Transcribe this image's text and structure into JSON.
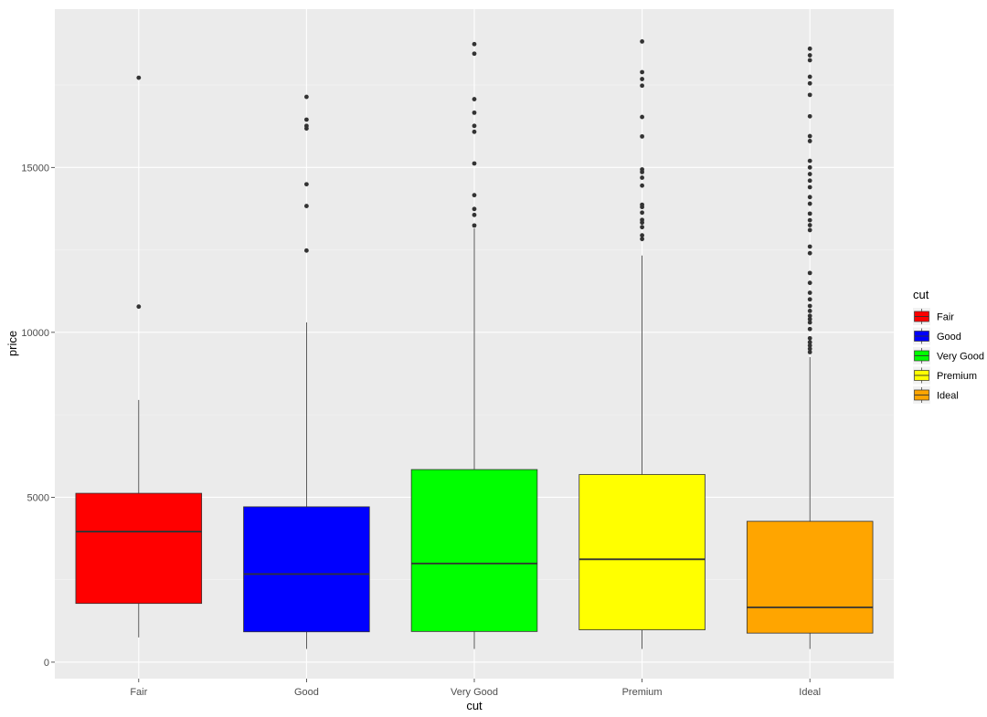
{
  "chart_data": {
    "type": "boxplot",
    "xlabel": "cut",
    "ylabel": "price",
    "categories": [
      "Fair",
      "Good",
      "Very Good",
      "Premium",
      "Ideal"
    ],
    "ylim": [
      -500,
      19800
    ],
    "y_ticks": [
      0,
      5000,
      10000,
      15000
    ],
    "y_tick_labels": [
      "0",
      "5000",
      "10000",
      "15000"
    ],
    "grid": true,
    "legend": {
      "title": "cut",
      "placement": "right",
      "entries": [
        {
          "label": "Fair",
          "color": "#ff0000"
        },
        {
          "label": "Good",
          "color": "#0000ff"
        },
        {
          "label": "Very Good",
          "color": "#00ff00"
        },
        {
          "label": "Premium",
          "color": "#ffff00"
        },
        {
          "label": "Ideal",
          "color": "#ffa500"
        }
      ]
    },
    "boxes": [
      {
        "name": "Fair",
        "color": "#ff0000",
        "whisker_low": 750,
        "q1": 1780,
        "median": 3960,
        "q3": 5120,
        "whisker_high": 7950,
        "outliers": [
          10780,
          17720
        ]
      },
      {
        "name": "Good",
        "color": "#0000ff",
        "whisker_low": 400,
        "q1": 920,
        "median": 2670,
        "q3": 4710,
        "whisker_high": 10300,
        "outliers": [
          12480,
          13830,
          14490,
          16180,
          16260,
          16450,
          17140
        ]
      },
      {
        "name": "Very Good",
        "color": "#00ff00",
        "whisker_low": 400,
        "q1": 930,
        "median": 2990,
        "q3": 5840,
        "whisker_high": 13150,
        "outliers": [
          13240,
          13560,
          13740,
          14160,
          15120,
          16080,
          16260,
          16660,
          17070,
          18450,
          18740
        ]
      },
      {
        "name": "Premium",
        "color": "#ffff00",
        "whisker_low": 400,
        "q1": 980,
        "median": 3120,
        "q3": 5690,
        "whisker_high": 12330,
        "outliers": [
          12830,
          12940,
          13190,
          13330,
          13410,
          13630,
          13800,
          13870,
          14450,
          14690,
          14860,
          14940,
          15940,
          16530,
          17480,
          17680,
          17890,
          18820
        ]
      },
      {
        "name": "Ideal",
        "color": "#ffa500",
        "whisker_low": 400,
        "q1": 880,
        "median": 1660,
        "q3": 4270,
        "whisker_high": 9250,
        "outliers": [
          9400,
          9500,
          9600,
          9700,
          9820,
          10100,
          10300,
          10400,
          10500,
          10650,
          10800,
          11000,
          11200,
          11500,
          11800,
          12400,
          12600,
          13100,
          13250,
          13400,
          13600,
          13900,
          14100,
          14400,
          14600,
          14800,
          15000,
          15200,
          15800,
          15950,
          16550,
          17200,
          17550,
          17750,
          18250,
          18400,
          18600
        ]
      }
    ]
  }
}
